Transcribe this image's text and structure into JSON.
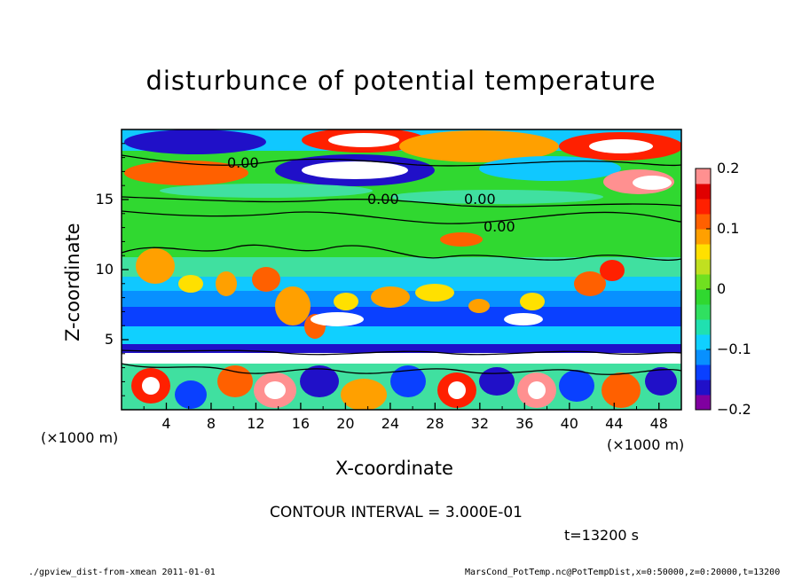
{
  "title": "disturbunce of potential temperature",
  "chart_data": {
    "type": "heatmap",
    "title": "disturbunce of potential temperature",
    "xlabel": "X-coordinate",
    "ylabel": "Z-coordinate",
    "x_unit": "(×1000 m)",
    "z_unit": "(×1000 m)",
    "xlim": [
      0,
      50
    ],
    "ylim": [
      0,
      20
    ],
    "x_ticks": [
      "4",
      "8",
      "12",
      "16",
      "20",
      "24",
      "28",
      "32",
      "36",
      "40",
      "44",
      "48"
    ],
    "y_ticks": [
      "5",
      "10",
      "15"
    ],
    "colorbar": {
      "range": [
        -0.2,
        0.2
      ],
      "tick_labels": [
        "0.2",
        "0.1",
        "0",
        "−0.1",
        "−0.2"
      ],
      "colors": [
        "#8000a0",
        "#2010c8",
        "#0a40ff",
        "#0890ff",
        "#10d0ff",
        "#20e0b0",
        "#30e060",
        "#30d830",
        "#70e020",
        "#c0e020",
        "#ffe000",
        "#ffa000",
        "#ff6000",
        "#ff2000",
        "#e00000",
        "#ff9090"
      ]
    },
    "contour_labels": [
      "0.00",
      "0.00",
      "0.00",
      "0.00"
    ],
    "contour_interval": "CONTOUR INTERVAL = 3.000E-01",
    "time": "t=13200 s"
  },
  "footer": {
    "left": "./gpview_dist-from-xmean  2011-01-01",
    "right": "MarsCond_PotTemp.nc@PotTempDist,x=0:50000,z=0:20000,t=13200"
  }
}
